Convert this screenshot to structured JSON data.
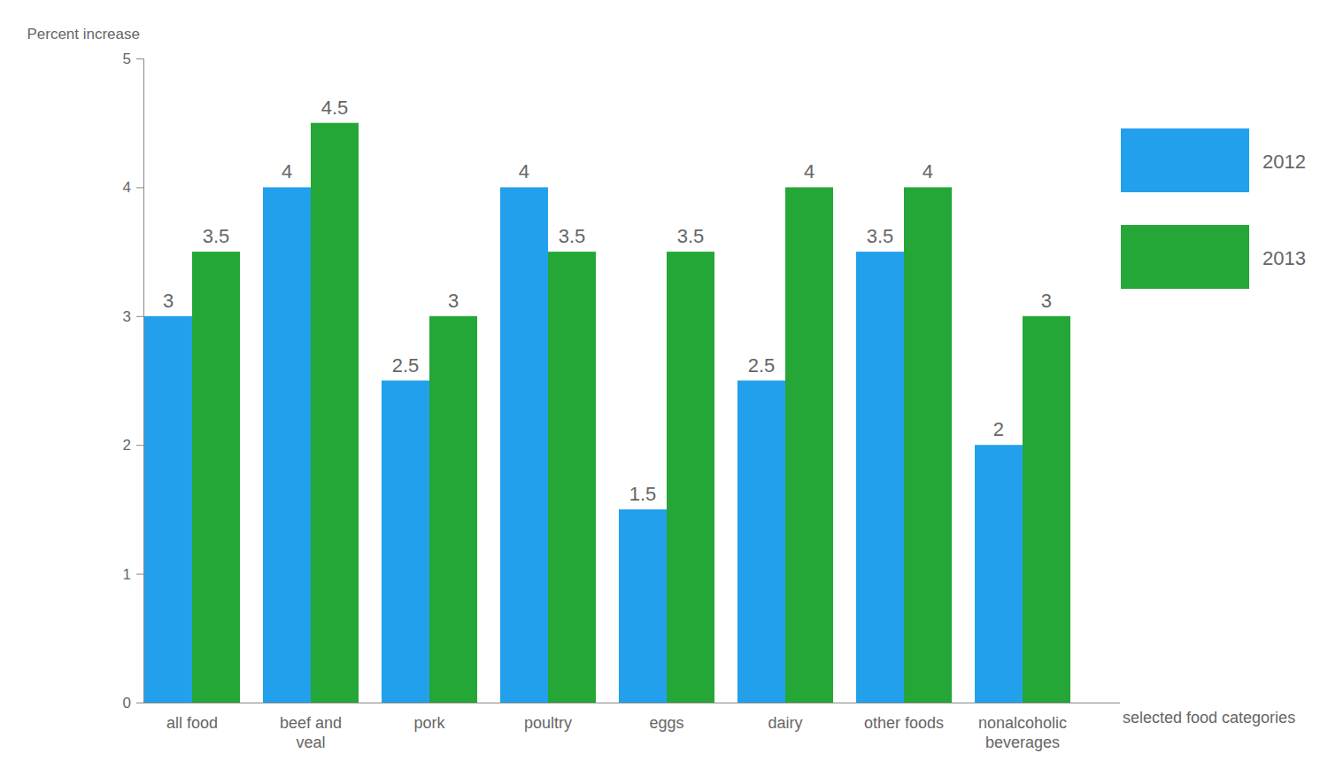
{
  "chart_data": {
    "type": "bar",
    "y_label": "Percent increase",
    "x_label": "selected food categories",
    "categories": [
      "all food",
      "beef and veal",
      "pork",
      "poultry",
      "eggs",
      "dairy",
      "other foods",
      "nonalcoholic beverages"
    ],
    "series": [
      {
        "name": "2012",
        "color": "#23a0ec",
        "values": [
          3,
          4,
          2.5,
          4,
          1.5,
          2.5,
          3.5,
          2
        ]
      },
      {
        "name": "2013",
        "color": "#24a736",
        "values": [
          3.5,
          4.5,
          3,
          3.5,
          3.5,
          4,
          4,
          3
        ]
      }
    ],
    "ylim": [
      0,
      5
    ],
    "yticks": [
      0,
      1,
      2,
      3,
      4,
      5
    ],
    "grid": false,
    "legend": "right",
    "data_labels": true
  }
}
